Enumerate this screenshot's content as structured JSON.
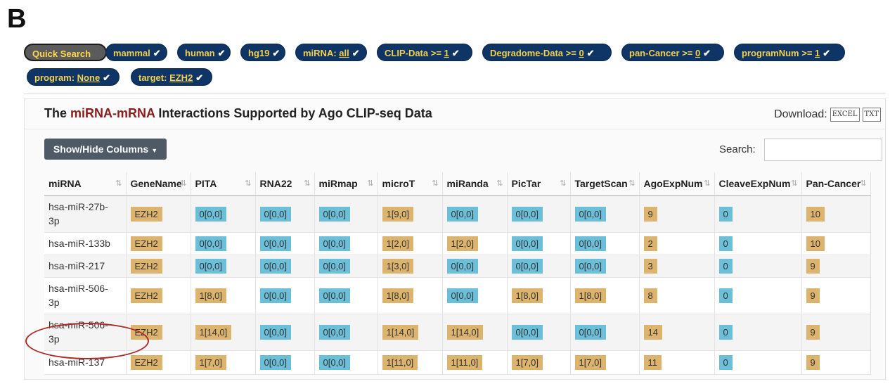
{
  "panel_label": "B",
  "filters": [
    {
      "key": "quick",
      "prefix": "Quick Search",
      "value": "",
      "check": false
    },
    {
      "key": "mammal",
      "prefix": "mammal",
      "value": "",
      "check": true
    },
    {
      "key": "human",
      "prefix": "human",
      "value": "",
      "check": true
    },
    {
      "key": "hg19",
      "prefix": "hg19",
      "value": "",
      "check": true
    },
    {
      "key": "mirna",
      "prefix": "miRNA: ",
      "value": "all",
      "check": true
    },
    {
      "key": "clip",
      "prefix": "CLIP-Data >= ",
      "value": "1",
      "check": true
    },
    {
      "key": "degradome",
      "prefix": "Degradome-Data >= ",
      "value": "0",
      "check": true
    },
    {
      "key": "pancancer",
      "prefix": "pan-Cancer >= ",
      "value": "0",
      "check": true
    },
    {
      "key": "programnum",
      "prefix": "programNum >= ",
      "value": "1",
      "check": true
    },
    {
      "key": "program",
      "prefix": "program: ",
      "value": "None",
      "check": true
    },
    {
      "key": "target",
      "prefix": "target: ",
      "value": "EZH2",
      "check": true
    }
  ],
  "title": {
    "pre": "The ",
    "highlight": "miRNA-mRNA",
    "post": " Interactions Supported by Ago CLIP-seq Data"
  },
  "download": {
    "label": "Download:",
    "excel": "EXCEL",
    "txt": "TXT"
  },
  "show_hide_label": "Show/Hide Columns",
  "search_label": "Search:",
  "search_value": "",
  "columns": [
    "miRNA",
    "GeneName",
    "PITA",
    "RNA22",
    "miRmap",
    "microT",
    "miRanda",
    "PicTar",
    "TargetScan",
    "AgoExpNum",
    "CleaveExpNum",
    "Pan-Cancer"
  ],
  "rows": [
    {
      "mirna": [
        "hsa-miR-27b-",
        "3p"
      ],
      "gene": "EZH2",
      "pita": "0[0,0]",
      "rna22": "0[0,0]",
      "mirmap": "0[0,0]",
      "microt": "1[9,0]",
      "miranda": "0[0,0]",
      "pictar": "0[0,0]",
      "targetscan": "0[0,0]",
      "ago": "9",
      "cleave": "0",
      "pancancer": "10"
    },
    {
      "mirna": [
        "hsa-miR-133b"
      ],
      "gene": "EZH2",
      "pita": "0[0,0]",
      "rna22": "0[0,0]",
      "mirmap": "0[0,0]",
      "microt": "1[2,0]",
      "miranda": "1[2,0]",
      "pictar": "0[0,0]",
      "targetscan": "0[0,0]",
      "ago": "2",
      "cleave": "0",
      "pancancer": "10"
    },
    {
      "mirna": [
        "hsa-miR-217"
      ],
      "gene": "EZH2",
      "pita": "0[0,0]",
      "rna22": "0[0,0]",
      "mirmap": "0[0,0]",
      "microt": "1[3,0]",
      "miranda": "0[0,0]",
      "pictar": "0[0,0]",
      "targetscan": "0[0,0]",
      "ago": "3",
      "cleave": "0",
      "pancancer": "9"
    },
    {
      "mirna": [
        "hsa-miR-506-",
        "3p"
      ],
      "gene": "EZH2",
      "pita": "1[8,0]",
      "rna22": "0[0,0]",
      "mirmap": "0[0,0]",
      "microt": "1[8,0]",
      "miranda": "0[0,0]",
      "pictar": "1[8,0]",
      "targetscan": "1[8,0]",
      "ago": "8",
      "cleave": "0",
      "pancancer": "9"
    },
    {
      "mirna": [
        "hsa-miR-506-",
        "3p"
      ],
      "gene": "EZH2",
      "pita": "1[14,0]",
      "rna22": "0[0,0]",
      "mirmap": "0[0,0]",
      "microt": "1[14,0]",
      "miranda": "1[14,0]",
      "pictar": "0[0,0]",
      "targetscan": "0[0,0]",
      "ago": "14",
      "cleave": "0",
      "pancancer": "9"
    },
    {
      "mirna": [
        "hsa-miR-137"
      ],
      "gene": "EZH2",
      "pita": "1[7,0]",
      "rna22": "0[0,0]",
      "mirmap": "0[0,0]",
      "microt": "1[11,0]",
      "miranda": "1[11,0]",
      "pictar": "1[7,0]",
      "targetscan": "1[7,0]",
      "ago": "11",
      "cleave": "0",
      "pancancer": "9"
    }
  ],
  "colors": {
    "pill_bg": "#0f3566",
    "pill_text": "#f5d04a",
    "cell_orange": "#dcb46e",
    "cell_blue": "#6cbfd8",
    "annotation_circle": "#b02a2a",
    "title_highlight": "#8a1c1c"
  },
  "icons": {
    "check": "check-icon",
    "caret": "caret-down-icon",
    "sort": "sort-icon"
  }
}
